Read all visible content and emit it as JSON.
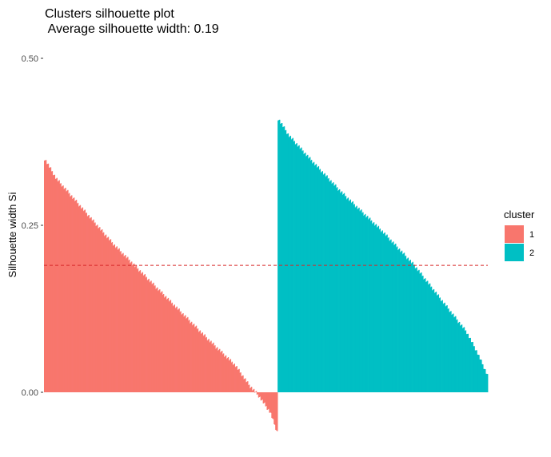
{
  "chart_data": {
    "type": "bar",
    "title": "Clusters silhouette plot",
    "subtitle": " Average silhouette width: 0.19",
    "xlabel": "",
    "ylabel": "Silhouette width Si",
    "ylim": [
      -0.1,
      1.05
    ],
    "yticks": [
      "0.00",
      "0.25",
      "0.50",
      "0.75",
      "1.00"
    ],
    "ytick_values": [
      0,
      0.25,
      0.5,
      0.75,
      1.0
    ],
    "grid": false,
    "legend": {
      "title": "cluster",
      "placement": "right"
    },
    "average_line": {
      "value": 0.19,
      "color": "#d62728",
      "style": "dashed"
    },
    "series": [
      {
        "name": "1",
        "color": "#F8766D",
        "count": 300,
        "profile": [
          [
            0,
            0.35
          ],
          [
            0.05,
            0.32
          ],
          [
            0.15,
            0.28
          ],
          [
            0.3,
            0.22
          ],
          [
            0.5,
            0.15
          ],
          [
            0.7,
            0.08
          ],
          [
            0.82,
            0.04
          ],
          [
            0.88,
            0.01
          ],
          [
            0.92,
            -0.005
          ],
          [
            0.97,
            -0.03
          ],
          [
            1.0,
            -0.06
          ]
        ]
      },
      {
        "name": "2",
        "color": "#00BFC4",
        "count": 270,
        "profile": [
          [
            0,
            0.41
          ],
          [
            0.05,
            0.385
          ],
          [
            0.15,
            0.35
          ],
          [
            0.3,
            0.3
          ],
          [
            0.5,
            0.24
          ],
          [
            0.65,
            0.19
          ],
          [
            0.8,
            0.13
          ],
          [
            0.9,
            0.09
          ],
          [
            0.95,
            0.06
          ],
          [
            1.0,
            0.025
          ]
        ]
      }
    ]
  }
}
